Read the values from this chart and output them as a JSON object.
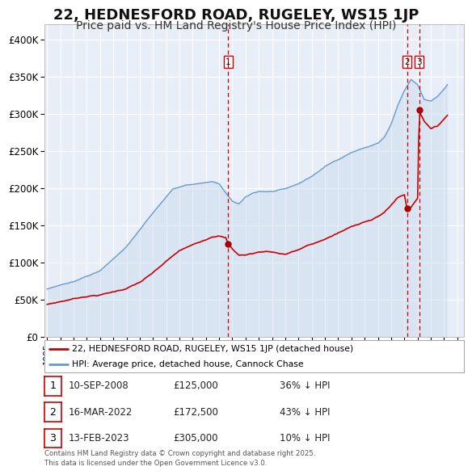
{
  "title": "22, HEDNESFORD ROAD, RUGELEY, WS15 1JP",
  "subtitle": "Price paid vs. HM Land Registry's House Price Index (HPI)",
  "title_fontsize": 13,
  "subtitle_fontsize": 10,
  "background_color": "#ffffff",
  "plot_bg_color": "#e8eef8",
  "grid_color": "#ffffff",
  "red_line_color": "#cc0000",
  "blue_line_color": "#6699cc",
  "blue_fill_color": "#c8d8ee",
  "sale_marker_color": "#aa0000",
  "vline_color": "#cc0000",
  "ylim": [
    0,
    420000
  ],
  "yticks": [
    0,
    50000,
    100000,
    150000,
    200000,
    250000,
    300000,
    350000,
    400000
  ],
  "ytick_labels": [
    "£0",
    "£50K",
    "£100K",
    "£150K",
    "£200K",
    "£250K",
    "£300K",
    "£350K",
    "£400K"
  ],
  "xlim_start": 1994.8,
  "xlim_end": 2026.5,
  "xticks": [
    1995,
    1996,
    1997,
    1998,
    1999,
    2000,
    2001,
    2002,
    2003,
    2004,
    2005,
    2006,
    2007,
    2008,
    2009,
    2010,
    2011,
    2012,
    2013,
    2014,
    2015,
    2016,
    2017,
    2018,
    2019,
    2020,
    2021,
    2022,
    2023,
    2024,
    2025,
    2026
  ],
  "legend_red_label": "22, HEDNESFORD ROAD, RUGELEY, WS15 1JP (detached house)",
  "legend_blue_label": "HPI: Average price, detached house, Cannock Chase",
  "sale_points": [
    {
      "num": 1,
      "year": 2008.69,
      "price": 125000,
      "date": "10-SEP-2008",
      "price_str": "£125,000",
      "pct_str": "36% ↓ HPI"
    },
    {
      "num": 2,
      "year": 2022.21,
      "price": 172500,
      "date": "16-MAR-2022",
      "price_str": "£172,500",
      "pct_str": "43% ↓ HPI"
    },
    {
      "num": 3,
      "year": 2023.12,
      "price": 305000,
      "date": "13-FEB-2023",
      "price_str": "£305,000",
      "pct_str": "10% ↓ HPI"
    }
  ],
  "footer_text": "Contains HM Land Registry data © Crown copyright and database right 2025.\nThis data is licensed under the Open Government Licence v3.0."
}
